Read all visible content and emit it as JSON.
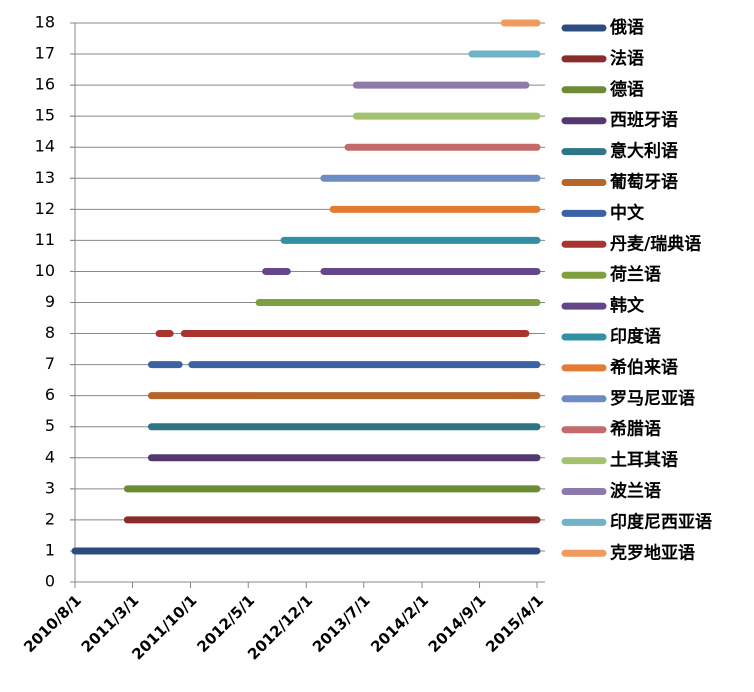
{
  "chart_data": {
    "type": "line",
    "xlim": [
      "2010/8/1",
      "2015/4/1"
    ],
    "xticks": [
      "2010/8/1",
      "2011/3/1",
      "2011/10/1",
      "2012/5/1",
      "2012/12/1",
      "2013/7/1",
      "2014/2/1",
      "2014/9/1",
      "2015/4/1"
    ],
    "ylim": [
      0,
      18
    ],
    "yticks": [
      0,
      1,
      2,
      3,
      4,
      5,
      6,
      7,
      8,
      9,
      10,
      11,
      12,
      13,
      14,
      15,
      16,
      17,
      18
    ],
    "grid": true,
    "legend": "right",
    "series": [
      {
        "name": "俄语",
        "color": "#2e4d7e",
        "x": [
          "2010/8/1",
          "2015/4/1"
        ],
        "values": [
          1,
          1
        ]
      },
      {
        "name": "法语",
        "color": "#8b2c2c",
        "x": [
          "2011/2/10",
          "2015/4/1"
        ],
        "values": [
          2,
          2
        ]
      },
      {
        "name": "德语",
        "color": "#6b8c34",
        "x": [
          "2011/2/10",
          "2015/4/1"
        ],
        "values": [
          3,
          3
        ]
      },
      {
        "name": "西班牙语",
        "color": "#54386f",
        "x": [
          "2011/5/10",
          "2015/4/1"
        ],
        "values": [
          4,
          4
        ]
      },
      {
        "name": "意大利语",
        "color": "#2d7485",
        "x": [
          "2011/5/10",
          "2015/4/1"
        ],
        "values": [
          5,
          5
        ]
      },
      {
        "name": "葡萄牙语",
        "color": "#b5642a",
        "x": [
          "2011/5/10",
          "2015/4/1"
        ],
        "values": [
          6,
          6
        ]
      },
      {
        "name": "中文",
        "color": "#3b62a3",
        "x": [
          "2011/5/10",
          "2011/8/20",
          null,
          "2011/10/6",
          "2015/4/1"
        ],
        "values": [
          7,
          7,
          null,
          7,
          7
        ]
      },
      {
        "name": "丹麦/瑞典语",
        "color": "#a8332f",
        "x": [
          "2011/6/7",
          "2011/7/18",
          null,
          "2011/9/8",
          "2015/2/19"
        ],
        "values": [
          8,
          8,
          null,
          8,
          8
        ]
      },
      {
        "name": "荷兰语",
        "color": "#7fa03e",
        "x": [
          "2012/6/10",
          "2015/4/1"
        ],
        "values": [
          9,
          9
        ]
      },
      {
        "name": "韩文",
        "color": "#65468a",
        "x": [
          "2012/7/4",
          "2012/9/22",
          null,
          "2013/2/4",
          "2015/4/1"
        ],
        "values": [
          10,
          10,
          null,
          10,
          10
        ]
      },
      {
        "name": "印度语",
        "color": "#3290a4",
        "x": [
          "2012/9/10",
          "2015/4/1"
        ],
        "values": [
          11,
          11
        ]
      },
      {
        "name": "希伯来语",
        "color": "#e37b33",
        "x": [
          "2013/3/10",
          "2015/4/1"
        ],
        "values": [
          12,
          12
        ]
      },
      {
        "name": "罗马尼亚语",
        "color": "#6d8cc4",
        "x": [
          "2013/2/4",
          "2015/4/1"
        ],
        "values": [
          13,
          13
        ]
      },
      {
        "name": "希腊语",
        "color": "#c46a6a",
        "x": [
          "2013/5/4",
          "2015/4/1"
        ],
        "values": [
          14,
          14
        ]
      },
      {
        "name": "土耳其语",
        "color": "#a3c26e",
        "x": [
          "2013/6/4",
          "2015/4/1"
        ],
        "values": [
          15,
          15
        ]
      },
      {
        "name": "波兰语",
        "color": "#8e79ab",
        "x": [
          "2013/6/4",
          "2015/2/19"
        ],
        "values": [
          16,
          16
        ]
      },
      {
        "name": "印度尼西亚语",
        "color": "#6fb3c9",
        "x": [
          "2014/8/4",
          "2015/4/1"
        ],
        "values": [
          17,
          17
        ]
      },
      {
        "name": "克罗地亚语",
        "color": "#f19a5e",
        "x": [
          "2014/12/1",
          "2015/4/1"
        ],
        "values": [
          18,
          18
        ]
      }
    ]
  }
}
